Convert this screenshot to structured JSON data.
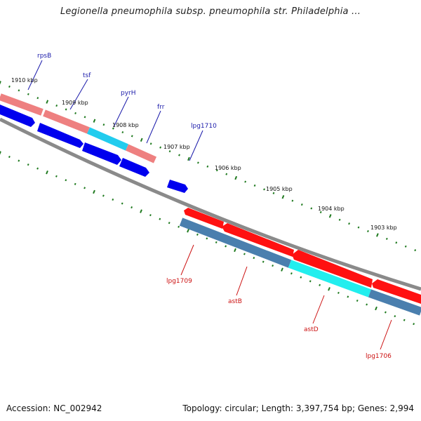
{
  "title": "Legionella pneumophila subsp. pneumophila str. Philadelphia ...",
  "footer": {
    "accession": "Accession: NC_002942",
    "summary": "Topology: circular; Length: 3,397,754 bp; Genes: 2,994"
  },
  "colors": {
    "backbone": "#8a8a8a",
    "tick": "#1f7a1f",
    "cds": "#0000ee",
    "gene_rna": "#ee8080",
    "gene_cyan": "#22ccee",
    "cds_rev": "#ff1111",
    "gene_rev": "#4a7fae",
    "gene_rev_cyan": "#22eeee",
    "label_fwd": "#1a1aaa",
    "label_rev": "#cc1111"
  },
  "ticks": [
    "1910 kbp",
    "1909 kbp",
    "1908 kbp",
    "1907 kbp",
    "1906 kbp",
    "1905 kbp",
    "1904 kbp",
    "1903 kbp"
  ],
  "genes_forward": [
    "rpsB",
    "tsf",
    "pyrH",
    "frr",
    "lpg1710"
  ],
  "genes_reverse": [
    "lpg1709",
    "astB",
    "astD",
    "lpg1706"
  ]
}
